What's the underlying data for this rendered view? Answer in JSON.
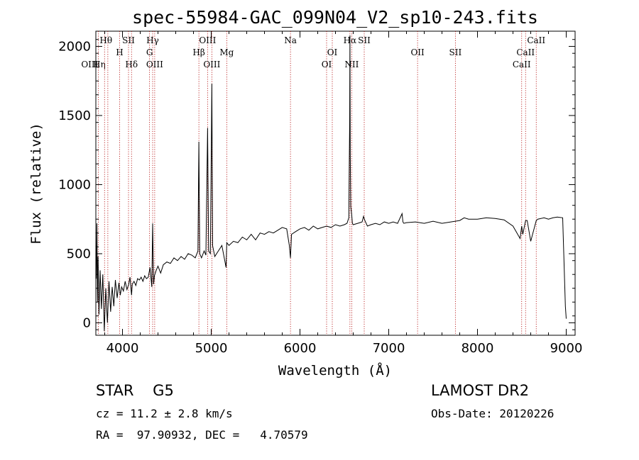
{
  "chart_data": {
    "type": "line",
    "title": "spec-55984-GAC_099N04_V2_sp10-243.fits",
    "xlabel": "Wavelength (Å)",
    "ylabel": "Flux (relative)",
    "xlim": [
      3700,
      9100
    ],
    "ylim": [
      -90,
      2110
    ],
    "x_ticks": [
      4000,
      5000,
      6000,
      7000,
      8000,
      9000
    ],
    "x_tick_labels": [
      "4000",
      "5000",
      "6000",
      "7000",
      "8000",
      "9000"
    ],
    "y_ticks": [
      0,
      500,
      1000,
      1500,
      2000
    ],
    "y_tick_labels": [
      "0",
      "500",
      "1000",
      "1500",
      "2000"
    ],
    "spectrum": {
      "name": "flux",
      "x": [
        3705,
        3712,
        3718,
        3725,
        3735,
        3748,
        3762,
        3778,
        3795,
        3812,
        3830,
        3848,
        3866,
        3884,
        3902,
        3920,
        3940,
        3960,
        3975,
        3990,
        4010,
        4030,
        4050,
        4070,
        4085,
        4095,
        4102,
        4110,
        4130,
        4150,
        4170,
        4190,
        4210,
        4230,
        4250,
        4270,
        4290,
        4310,
        4330,
        4340,
        4350,
        4360,
        4380,
        4400,
        4430,
        4460,
        4500,
        4540,
        4580,
        4620,
        4660,
        4700,
        4740,
        4780,
        4820,
        4850,
        4861,
        4870,
        4890,
        4920,
        4940,
        4959,
        4970,
        4990,
        5007,
        5015,
        5040,
        5080,
        5120,
        5167,
        5175,
        5200,
        5250,
        5300,
        5350,
        5400,
        5450,
        5500,
        5550,
        5600,
        5650,
        5700,
        5750,
        5800,
        5850,
        5880,
        5893,
        5905,
        5950,
        6000,
        6050,
        6100,
        6150,
        6200,
        6250,
        6300,
        6350,
        6400,
        6450,
        6500,
        6530,
        6550,
        6556,
        6560,
        6563,
        6566,
        6572,
        6583,
        6590,
        6600,
        6650,
        6700,
        6716,
        6731,
        6760,
        6800,
        6850,
        6900,
        6950,
        7000,
        7050,
        7100,
        7150,
        7160,
        7170,
        7200,
        7300,
        7400,
        7500,
        7600,
        7700,
        7800,
        7850,
        7900,
        8000,
        8100,
        8200,
        8300,
        8400,
        8480,
        8498,
        8510,
        8542,
        8560,
        8600,
        8662,
        8680,
        8750,
        8800,
        8850,
        8900,
        8960,
        8990,
        9000
      ],
      "y": [
        320,
        720,
        150,
        480,
        60,
        380,
        100,
        350,
        -60,
        250,
        0,
        300,
        80,
        260,
        120,
        310,
        180,
        290,
        200,
        260,
        230,
        300,
        240,
        280,
        330,
        250,
        200,
        280,
        300,
        270,
        320,
        310,
        330,
        300,
        340,
        320,
        330,
        400,
        260,
        720,
        280,
        340,
        380,
        410,
        360,
        420,
        440,
        430,
        470,
        450,
        480,
        460,
        500,
        490,
        470,
        520,
        1310,
        500,
        470,
        520,
        490,
        1410,
        520,
        500,
        1730,
        560,
        480,
        520,
        560,
        400,
        580,
        560,
        590,
        580,
        620,
        600,
        640,
        600,
        650,
        640,
        660,
        650,
        670,
        690,
        680,
        560,
        470,
        640,
        660,
        680,
        690,
        670,
        700,
        680,
        690,
        700,
        690,
        710,
        700,
        710,
        720,
        760,
        1180,
        1450,
        2080,
        1220,
        840,
        780,
        720,
        710,
        720,
        730,
        770,
        740,
        700,
        710,
        720,
        710,
        730,
        720,
        730,
        720,
        790,
        730,
        720,
        725,
        730,
        720,
        735,
        720,
        730,
        740,
        760,
        750,
        750,
        760,
        755,
        745,
        700,
        610,
        700,
        640,
        740,
        740,
        590,
        740,
        750,
        760,
        750,
        760,
        765,
        760,
        120,
        30
      ]
    },
    "lines": [
      {
        "name": "OIII",
        "wl": 3727,
        "label": "OIII",
        "row": 3,
        "dx": -12
      },
      {
        "name": "Heta",
        "wl": 3835,
        "label": "Hη",
        "row": 3,
        "dx": -12
      },
      {
        "name": "Htheta",
        "wl": 3798,
        "label": "Hθ",
        "row": 1,
        "dx": 2
      },
      {
        "name": "SII",
        "wl": 4068,
        "label": "SII",
        "row": 1,
        "dx": 0
      },
      {
        "name": "H",
        "wl": 3968,
        "label": "H",
        "row": 2,
        "dx": 0
      },
      {
        "name": "Hdelta",
        "wl": 4102,
        "label": "Hδ",
        "row": 3,
        "dx": 0
      },
      {
        "name": "Hgamma",
        "wl": 4340,
        "label": "Hγ",
        "row": 1,
        "dx": 0
      },
      {
        "name": "G",
        "wl": 4305,
        "label": "G",
        "row": 2,
        "dx": 0
      },
      {
        "name": "OIII2",
        "wl": 4363,
        "label": "OIII",
        "row": 3,
        "dx": 0
      },
      {
        "name": "OIII3",
        "wl": 4959,
        "label": "OIII",
        "row": 1,
        "dx": 0
      },
      {
        "name": "Hbeta",
        "wl": 4861,
        "label": "Hβ",
        "row": 2,
        "dx": 0
      },
      {
        "name": "OIII4",
        "wl": 5007,
        "label": "OIII",
        "row": 3,
        "dx": 0
      },
      {
        "name": "Mg",
        "wl": 5175,
        "label": "Mg",
        "row": 2,
        "dx": 0
      },
      {
        "name": "Na",
        "wl": 5893,
        "label": "Na",
        "row": 1,
        "dx": 0
      },
      {
        "name": "OI",
        "wl": 6364,
        "label": "OI",
        "row": 2,
        "dx": 0
      },
      {
        "name": "OI2",
        "wl": 6300,
        "label": "OI",
        "row": 3,
        "dx": 0
      },
      {
        "name": "Halpha",
        "wl": 6563,
        "label": "Hα",
        "row": 1,
        "dx": 0
      },
      {
        "name": "SII2",
        "wl": 6724,
        "label": "SII",
        "row": 1,
        "dx": 0
      },
      {
        "name": "NII",
        "wl": 6583,
        "label": "NII",
        "row": 3,
        "dx": 0
      },
      {
        "name": "OII",
        "wl": 7325,
        "label": "OII",
        "row": 2,
        "dx": 0
      },
      {
        "name": "SII3",
        "wl": 7751,
        "label": "SII",
        "row": 2,
        "dx": 0
      },
      {
        "name": "CaII",
        "wl": 8662,
        "label": "CaII",
        "row": 1,
        "dx": 0
      },
      {
        "name": "CaII2",
        "wl": 8542,
        "label": "CaII",
        "row": 2,
        "dx": 0
      },
      {
        "name": "CaII3",
        "wl": 8498,
        "label": "CaII",
        "row": 3,
        "dx": 0
      }
    ]
  },
  "info": {
    "class_text": "STAR    G5",
    "survey": "LAMOST DR2",
    "cz": "cz = 11.2 ± 2.8 km/s",
    "obs_date": "Obs-Date: 20120226",
    "coords": "RA =  97.90932, DEC =   4.70579"
  }
}
